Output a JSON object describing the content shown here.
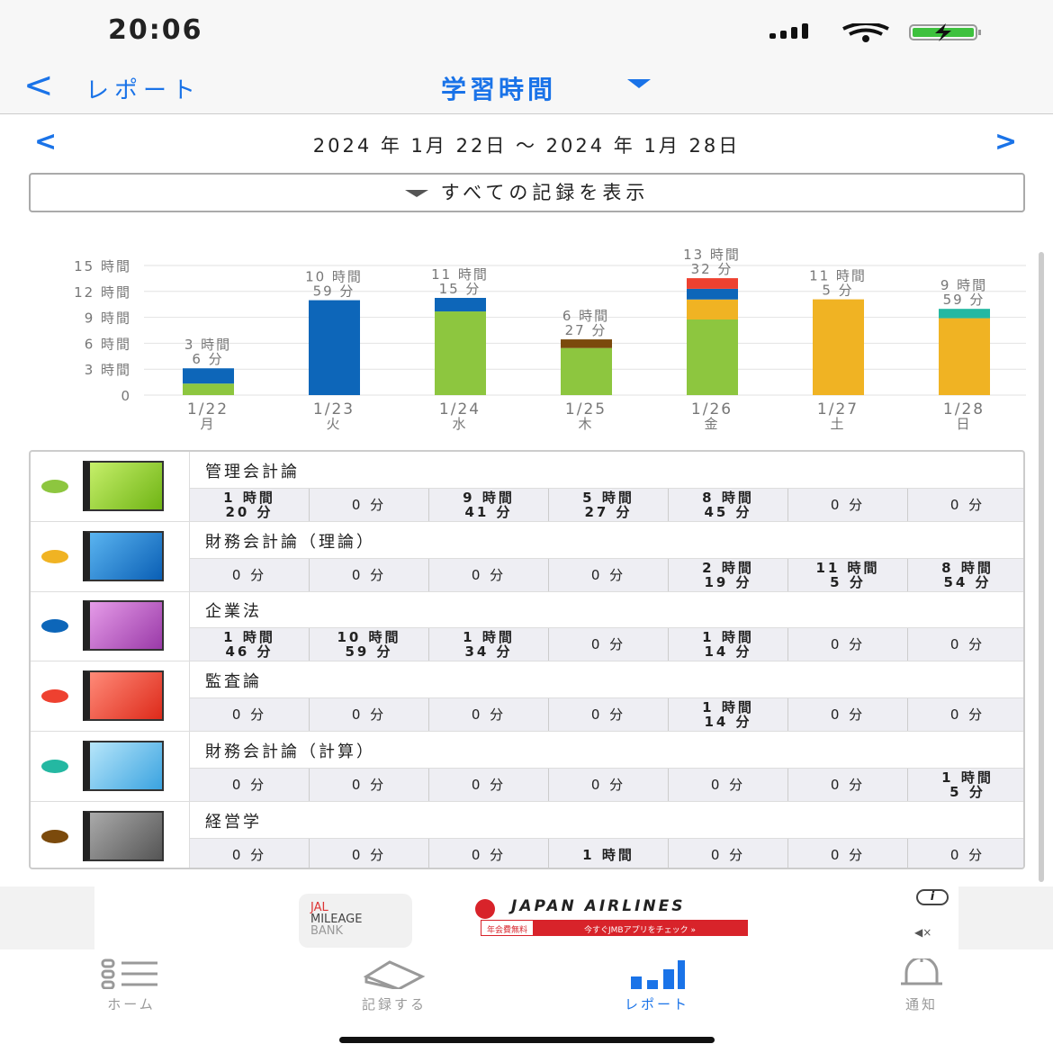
{
  "status": {
    "time": "20:06"
  },
  "nav": {
    "back_label": "レポート",
    "title": "学習時間"
  },
  "period": {
    "range": "2024 年 1月 22日 〜 2024 年 1月 28日"
  },
  "filter": {
    "label": "すべての記録を表示"
  },
  "colors": {
    "accent": "#1a73e8",
    "green": "#8dc63f",
    "yellow": "#f0b323",
    "blue": "#0d66b9",
    "red": "#ee4130",
    "teal": "#24b8a2",
    "brown": "#7b4a0c"
  },
  "chart_data": {
    "type": "bar",
    "stacked": true,
    "categories": [
      "1/22",
      "1/23",
      "1/24",
      "1/25",
      "1/26",
      "1/27",
      "1/28"
    ],
    "weekdays": [
      "月",
      "火",
      "水",
      "木",
      "金",
      "土",
      "日"
    ],
    "ytick_labels": [
      "0",
      "3 時間",
      "6 時間",
      "9 時間",
      "12 時間",
      "15 時間"
    ],
    "yticks": [
      0,
      3,
      6,
      9,
      12,
      15
    ],
    "ylim": [
      0,
      15
    ],
    "grid": true,
    "totals_labels": [
      [
        "3 時間",
        "6 分"
      ],
      [
        "10 時間",
        "59 分"
      ],
      [
        "11 時間",
        "15 分"
      ],
      [
        "6 時間",
        "27 分"
      ],
      [
        "13 時間",
        "32 分"
      ],
      [
        "11 時間",
        "5 分"
      ],
      [
        "9 時間",
        "59 分"
      ]
    ],
    "series": [
      {
        "name": "管理会計論",
        "color": "#8dc63f",
        "values": [
          1.333,
          0,
          9.683,
          5.45,
          8.75,
          0,
          0
        ]
      },
      {
        "name": "財務会計論（理論）",
        "color": "#f0b323",
        "values": [
          0,
          0,
          0,
          0,
          2.317,
          11.083,
          8.9
        ]
      },
      {
        "name": "企業法",
        "color": "#0d66b9",
        "values": [
          1.767,
          10.983,
          1.567,
          0,
          1.233,
          0,
          0
        ]
      },
      {
        "name": "監査論",
        "color": "#ee4130",
        "values": [
          0,
          0,
          0,
          0,
          1.233,
          0,
          0
        ]
      },
      {
        "name": "財務会計論（計算）",
        "color": "#24b8a2",
        "values": [
          0,
          0,
          0,
          0,
          0,
          0,
          1.083
        ]
      },
      {
        "name": "経営学",
        "color": "#7b4a0c",
        "values": [
          0,
          0,
          0,
          1,
          0,
          0,
          0
        ]
      }
    ]
  },
  "subjects": [
    {
      "name": "管理会計論",
      "color": "#8dc63f",
      "book": [
        "#c6ef6a",
        "#6fb414"
      ],
      "cells": [
        [
          "1 時間",
          "20 分"
        ],
        [
          "0 分"
        ],
        [
          "9 時間",
          "41 分"
        ],
        [
          "5 時間",
          "27 分"
        ],
        [
          "8 時間",
          "45 分"
        ],
        [
          "0 分"
        ],
        [
          "0 分"
        ]
      ]
    },
    {
      "name": "財務会計論（理論）",
      "color": "#f0b323",
      "book": [
        "#5ab4f0",
        "#0a5fb5"
      ],
      "cells": [
        [
          "0 分"
        ],
        [
          "0 分"
        ],
        [
          "0 分"
        ],
        [
          "0 分"
        ],
        [
          "2 時間",
          "19 分"
        ],
        [
          "11 時間",
          "5 分"
        ],
        [
          "8 時間",
          "54 分"
        ]
      ]
    },
    {
      "name": "企業法",
      "color": "#0d66b9",
      "book": [
        "#e59be8",
        "#9a3aa8"
      ],
      "cells": [
        [
          "1 時間",
          "46 分"
        ],
        [
          "10 時間",
          "59 分"
        ],
        [
          "1 時間",
          "34 分"
        ],
        [
          "0 分"
        ],
        [
          "1 時間",
          "14 分"
        ],
        [
          "0 分"
        ],
        [
          "0 分"
        ]
      ]
    },
    {
      "name": "監査論",
      "color": "#ee4130",
      "book": [
        "#ff8a78",
        "#dd2a1a"
      ],
      "cells": [
        [
          "0 分"
        ],
        [
          "0 分"
        ],
        [
          "0 分"
        ],
        [
          "0 分"
        ],
        [
          "1 時間",
          "14 分"
        ],
        [
          "0 分"
        ],
        [
          "0 分"
        ]
      ]
    },
    {
      "name": "財務会計論（計算）",
      "color": "#24b8a2",
      "book": [
        "#b7e6fa",
        "#3aa3e0"
      ],
      "cells": [
        [
          "0 分"
        ],
        [
          "0 分"
        ],
        [
          "0 分"
        ],
        [
          "0 分"
        ],
        [
          "0 分"
        ],
        [
          "0 分"
        ],
        [
          "1 時間",
          "5 分"
        ]
      ]
    },
    {
      "name": "経営学",
      "color": "#7b4a0c",
      "book": [
        "#aaaaaa",
        "#555555"
      ],
      "cells": [
        [
          "0 分"
        ],
        [
          "0 分"
        ],
        [
          "0 分"
        ],
        [
          "1 時間"
        ],
        [
          "0 分"
        ],
        [
          "0 分"
        ],
        [
          "0 分"
        ]
      ]
    }
  ],
  "ad": {
    "logo_lines": [
      "JAL",
      "MILEAGE",
      "BANK"
    ],
    "brand": "JAPAN AIRLINES",
    "banner_left": "年会費無料",
    "banner_right": "今すぐJMBアプリをチェック »"
  },
  "tabs": [
    {
      "label": "ホーム",
      "icon": "list-icon"
    },
    {
      "label": "記録する",
      "icon": "eraser-icon"
    },
    {
      "label": "レポート",
      "icon": "bar-chart-icon",
      "active": true
    },
    {
      "label": "通知",
      "icon": "bell-icon"
    }
  ]
}
